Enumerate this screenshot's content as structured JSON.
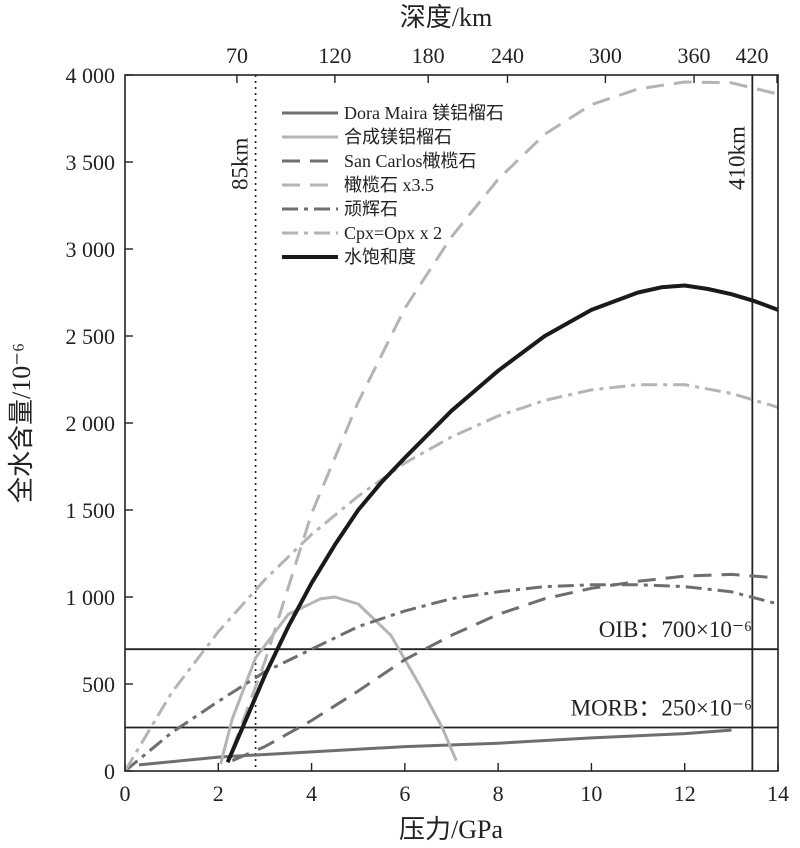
{
  "chart_data": {
    "type": "line",
    "title": "",
    "xlabel": "压力/GPa",
    "ylabel": "全水含量/10⁻⁶",
    "top_xlabel": "深度/km",
    "xlim": [
      0,
      14
    ],
    "ylim": [
      0,
      4000
    ],
    "x_ticks": [
      0,
      2,
      4,
      6,
      8,
      10,
      12,
      14
    ],
    "x_tick_labels": [
      "0",
      "2",
      "4",
      "6",
      "8",
      "10",
      "12",
      "14"
    ],
    "y_ticks": [
      0,
      500,
      1000,
      1500,
      2000,
      2500,
      3000,
      3500,
      4000
    ],
    "y_tick_labels": [
      "0",
      "500",
      "1 000",
      "1 500",
      "2 000",
      "2 500",
      "3 000",
      "3 500",
      "4 000"
    ],
    "top_ticks": [
      {
        "pressure": 2.4,
        "label": "70"
      },
      {
        "pressure": 4.5,
        "label": "120"
      },
      {
        "pressure": 6.5,
        "label": "180"
      },
      {
        "pressure": 8.2,
        "label": "240"
      },
      {
        "pressure": 10.3,
        "label": "300"
      },
      {
        "pressure": 12.2,
        "label": "360"
      },
      {
        "pressure": 14.0,
        "label": "420"
      }
    ],
    "series": [
      {
        "name": "Dora Maira 镁铝榴石",
        "style": "solid",
        "width": 3,
        "color": "#6e6e6e",
        "x": [
          0.3,
          2,
          4,
          6,
          8,
          10,
          12,
          13
        ],
        "y": [
          35,
          80,
          110,
          140,
          160,
          190,
          215,
          235
        ]
      },
      {
        "name": "合成镁铝榴石",
        "style": "solid",
        "width": 3,
        "color": "#b4b4b4",
        "x": [
          2.05,
          2.3,
          2.8,
          3.5,
          4.2,
          4.5,
          5,
          5.7,
          6.3,
          6.8,
          7.1
        ],
        "y": [
          40,
          300,
          650,
          900,
          990,
          1000,
          960,
          780,
          500,
          250,
          60
        ]
      },
      {
        "name": "San Carlos橄榄石",
        "style": "dashed",
        "width": 3,
        "color": "#6e6e6e",
        "x": [
          2.3,
          3,
          4,
          5,
          6,
          7,
          8,
          9,
          10,
          11,
          12,
          13,
          14
        ],
        "y": [
          60,
          140,
          290,
          460,
          640,
          780,
          900,
          990,
          1050,
          1090,
          1120,
          1130,
          1110
        ]
      },
      {
        "name": "橄榄石 x3.5",
        "style": "dashed",
        "width": 3,
        "color": "#b4b4b4",
        "x": [
          2.3,
          3,
          4,
          5,
          6,
          7,
          8,
          9,
          10,
          11,
          12,
          13,
          14
        ],
        "y": [
          120,
          630,
          1480,
          2120,
          2660,
          3070,
          3400,
          3660,
          3830,
          3920,
          3960,
          3955,
          3890
        ]
      },
      {
        "name": "顽辉石",
        "style": "dashdot",
        "width": 3,
        "color": "#6e6e6e",
        "x": [
          0,
          1,
          2,
          3,
          4,
          5,
          6,
          7,
          8,
          9,
          10,
          11,
          12,
          13,
          14
        ],
        "y": [
          0,
          220,
          400,
          570,
          700,
          830,
          920,
          990,
          1030,
          1060,
          1070,
          1070,
          1060,
          1030,
          960
        ]
      },
      {
        "name": "Cpx=Opx x 2",
        "style": "dashdot",
        "width": 3,
        "color": "#b4b4b4",
        "x": [
          0,
          1,
          2,
          3,
          4,
          5,
          6,
          7,
          8,
          9,
          10,
          11,
          12,
          13,
          14
        ],
        "y": [
          0,
          450,
          800,
          1100,
          1360,
          1580,
          1770,
          1920,
          2040,
          2130,
          2190,
          2220,
          2220,
          2170,
          2090
        ]
      },
      {
        "name": "水饱和度",
        "style": "solid",
        "width": 4,
        "color": "#1a1a1a",
        "x": [
          2.2,
          2.6,
          3,
          3.5,
          4,
          4.5,
          5,
          5.5,
          6,
          7,
          8,
          9,
          10,
          11,
          11.5,
          12,
          12.5,
          13,
          13.5,
          14
        ],
        "y": [
          50,
          300,
          550,
          830,
          1080,
          1300,
          1500,
          1660,
          1800,
          2070,
          2300,
          2500,
          2650,
          2750,
          2780,
          2790,
          2770,
          2740,
          2700,
          2650
        ]
      }
    ],
    "reference_lines": [
      {
        "orientation": "vertical",
        "at": 2.8,
        "style": "dotted",
        "label": "85km"
      },
      {
        "orientation": "vertical",
        "at": 13.45,
        "style": "solid",
        "label": "410km"
      },
      {
        "orientation": "horizontal",
        "at": 700,
        "style": "solid",
        "label": "OIB：700×10⁻⁶"
      },
      {
        "orientation": "horizontal",
        "at": 250,
        "style": "solid",
        "label": "MORB：250×10⁻⁶"
      }
    ],
    "legend_position": "top-center"
  }
}
